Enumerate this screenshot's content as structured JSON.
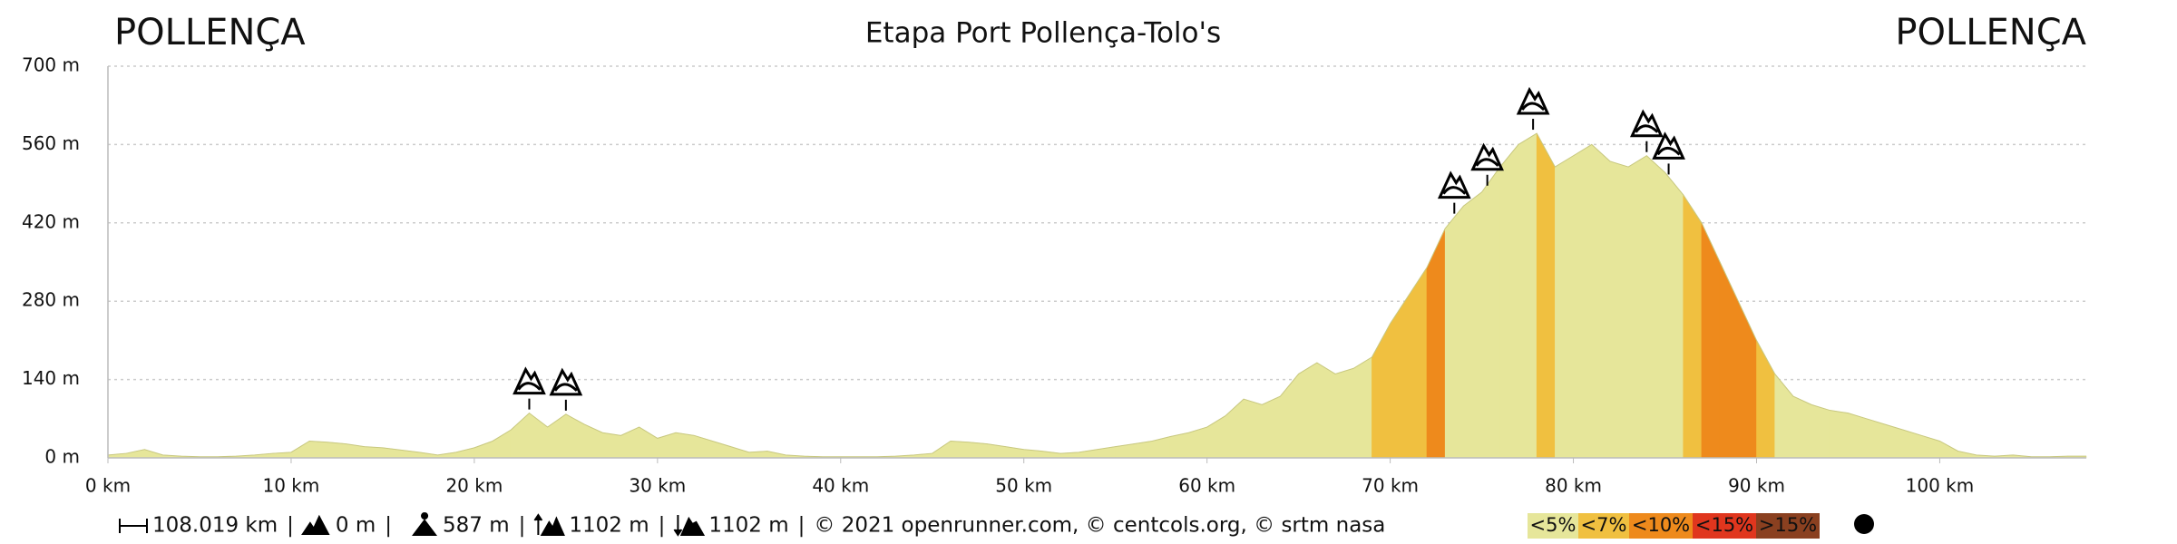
{
  "chart_data": {
    "type": "elevation-profile",
    "title": "Etapa Port Pollença-Tolo's",
    "start_label": "POLLENÇA",
    "end_label": "POLLENÇA",
    "x": [
      0,
      1,
      2,
      3,
      4,
      5,
      6,
      7,
      8,
      9,
      10,
      11,
      12,
      13,
      14,
      15,
      16,
      17,
      18,
      19,
      20,
      21,
      22,
      23,
      24,
      25,
      26,
      27,
      28,
      29,
      30,
      31,
      32,
      33,
      34,
      35,
      36,
      37,
      38,
      39,
      40,
      41,
      42,
      43,
      44,
      45,
      46,
      47,
      48,
      49,
      50,
      51,
      52,
      53,
      54,
      55,
      56,
      57,
      58,
      59,
      60,
      61,
      62,
      63,
      64,
      65,
      66,
      67,
      68,
      69,
      70,
      71,
      72,
      73,
      74,
      75,
      76,
      77,
      78,
      79,
      80,
      81,
      82,
      83,
      84,
      85,
      86,
      87,
      88,
      89,
      90,
      91,
      92,
      93,
      94,
      95,
      96,
      97,
      98,
      99,
      100,
      101,
      102,
      103,
      104,
      105,
      106,
      107,
      108
    ],
    "y": [
      5,
      8,
      15,
      5,
      3,
      2,
      2,
      3,
      5,
      8,
      10,
      30,
      28,
      25,
      20,
      18,
      14,
      10,
      5,
      10,
      18,
      30,
      50,
      80,
      55,
      78,
      60,
      45,
      40,
      55,
      35,
      45,
      40,
      30,
      20,
      10,
      12,
      5,
      3,
      2,
      2,
      2,
      2,
      3,
      5,
      8,
      30,
      28,
      25,
      20,
      15,
      12,
      8,
      10,
      15,
      20,
      25,
      30,
      38,
      45,
      55,
      75,
      105,
      95,
      110,
      150,
      170,
      150,
      160,
      180,
      240,
      290,
      340,
      410,
      450,
      475,
      520,
      560,
      580,
      520,
      540,
      560,
      530,
      520,
      540,
      510,
      470,
      420,
      350,
      280,
      210,
      150,
      110,
      95,
      85,
      80,
      70,
      60,
      50,
      40,
      30,
      12,
      5,
      3,
      5,
      2,
      2,
      3,
      3
    ],
    "summits": [
      {
        "x": 23,
        "y": 80
      },
      {
        "x": 25,
        "y": 78
      },
      {
        "x": 73.5,
        "y": 430
      },
      {
        "x": 75.3,
        "y": 480
      },
      {
        "x": 77.8,
        "y": 580
      },
      {
        "x": 84,
        "y": 540
      },
      {
        "x": 85.2,
        "y": 500
      }
    ],
    "xlim": [
      0,
      108
    ],
    "ylim": [
      0,
      700
    ],
    "xticks": [
      {
        "value": 0,
        "label": "0 km"
      },
      {
        "value": 10,
        "label": "10 km"
      },
      {
        "value": 20,
        "label": "20 km"
      },
      {
        "value": 30,
        "label": "30 km"
      },
      {
        "value": 40,
        "label": "40 km"
      },
      {
        "value": 50,
        "label": "50 km"
      },
      {
        "value": 60,
        "label": "60 km"
      },
      {
        "value": 70,
        "label": "70 km"
      },
      {
        "value": 80,
        "label": "80 km"
      },
      {
        "value": 90,
        "label": "90 km"
      },
      {
        "value": 100,
        "label": "100 km"
      }
    ],
    "yticks": [
      {
        "value": 0,
        "label": "0 m"
      },
      {
        "value": 140,
        "label": "140 m"
      },
      {
        "value": 280,
        "label": "280 m"
      },
      {
        "value": 420,
        "label": "420 m"
      },
      {
        "value": 560,
        "label": "560 m"
      },
      {
        "value": 700,
        "label": "700 m"
      }
    ],
    "grid": true,
    "grade_classes": [
      {
        "value": 5,
        "label": "<5%",
        "color": "#e6e69a"
      },
      {
        "value": 7,
        "label": "<7%",
        "color": "#f0c040"
      },
      {
        "value": 10,
        "label": "<10%",
        "color": "#ee8a1c"
      },
      {
        "value": 15,
        "label": "<15%",
        "color": "#e0361e"
      },
      {
        "value": 15,
        "label": ">15%",
        "color": "#8a4020"
      }
    ],
    "footer": {
      "distance": "108.019 km",
      "min_alt": "0 m",
      "max_alt": "587 m",
      "gain": "1102 m",
      "loss": "1102 m",
      "separator": "|",
      "credits": "© 2021 openrunner.com, © centcols.org, © srtm nasa"
    }
  }
}
